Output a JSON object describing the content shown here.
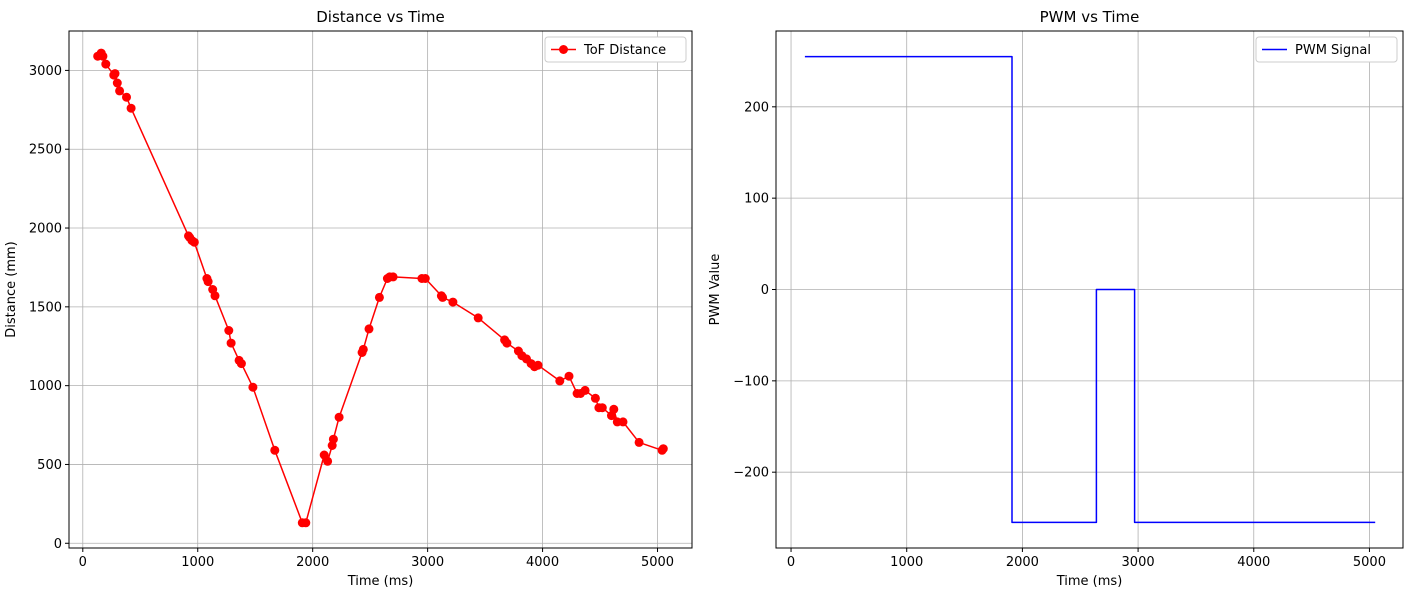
{
  "chart_data": [
    {
      "type": "line",
      "title": "Distance vs Time",
      "xlabel": "Time (ms)",
      "ylabel": "Distance (mm)",
      "xlim": [
        -120,
        5300
      ],
      "ylim": [
        -30,
        3250
      ],
      "xticks": [
        0,
        1000,
        2000,
        3000,
        4000,
        5000
      ],
      "yticks": [
        0,
        500,
        1000,
        1500,
        2000,
        2500,
        3000
      ],
      "grid": true,
      "legend": "top-right",
      "color": "#ff0000",
      "series": [
        {
          "name": "ToF Distance",
          "marker": "circle",
          "x": [
            130,
            160,
            175,
            200,
            270,
            280,
            300,
            320,
            380,
            420,
            920,
            930,
            950,
            970,
            1080,
            1090,
            1130,
            1150,
            1270,
            1290,
            1360,
            1380,
            1480,
            1670,
            1910,
            1940,
            2100,
            2130,
            2170,
            2180,
            2230,
            2430,
            2440,
            2490,
            2580,
            2650,
            2670,
            2700,
            2950,
            2980,
            3120,
            3130,
            3220,
            3440,
            3670,
            3690,
            3790,
            3820,
            3860,
            3900,
            3930,
            3960,
            4150,
            4230,
            4300,
            4330,
            4370,
            4460,
            4490,
            4520,
            4600,
            4620,
            4650,
            4700,
            4840,
            5040,
            5050
          ],
          "y": [
            3090,
            3110,
            3090,
            3040,
            2970,
            2980,
            2920,
            2870,
            2830,
            2760,
            1950,
            1940,
            1920,
            1910,
            1680,
            1660,
            1610,
            1570,
            1350,
            1270,
            1160,
            1140,
            990,
            590,
            130,
            130,
            560,
            520,
            620,
            660,
            800,
            1210,
            1230,
            1360,
            1560,
            1680,
            1690,
            1690,
            1680,
            1680,
            1570,
            1560,
            1530,
            1430,
            1290,
            1270,
            1220,
            1190,
            1170,
            1140,
            1120,
            1130,
            1030,
            1060,
            950,
            950,
            970,
            920,
            860,
            860,
            810,
            850,
            770,
            770,
            640,
            590,
            600
          ]
        }
      ]
    },
    {
      "type": "line",
      "title": "PWM vs Time",
      "xlabel": "Time (ms)",
      "ylabel": "PWM Value",
      "xlim": [
        -130,
        5290
      ],
      "ylim": [
        -283,
        283
      ],
      "xticks": [
        0,
        1000,
        2000,
        3000,
        4000,
        5000
      ],
      "yticks": [
        -200,
        -100,
        0,
        100,
        200
      ],
      "ytick_labels": [
        "−200",
        "−100",
        "0",
        "100",
        "200"
      ],
      "grid": true,
      "legend": "top-right",
      "color": "#0000ff",
      "series": [
        {
          "name": "PWM Signal",
          "step": true,
          "x": [
            120,
            1910,
            1910,
            2640,
            2640,
            2970,
            2970,
            5050
          ],
          "y": [
            255,
            255,
            -255,
            -255,
            0,
            0,
            -255,
            -255
          ]
        }
      ]
    }
  ]
}
